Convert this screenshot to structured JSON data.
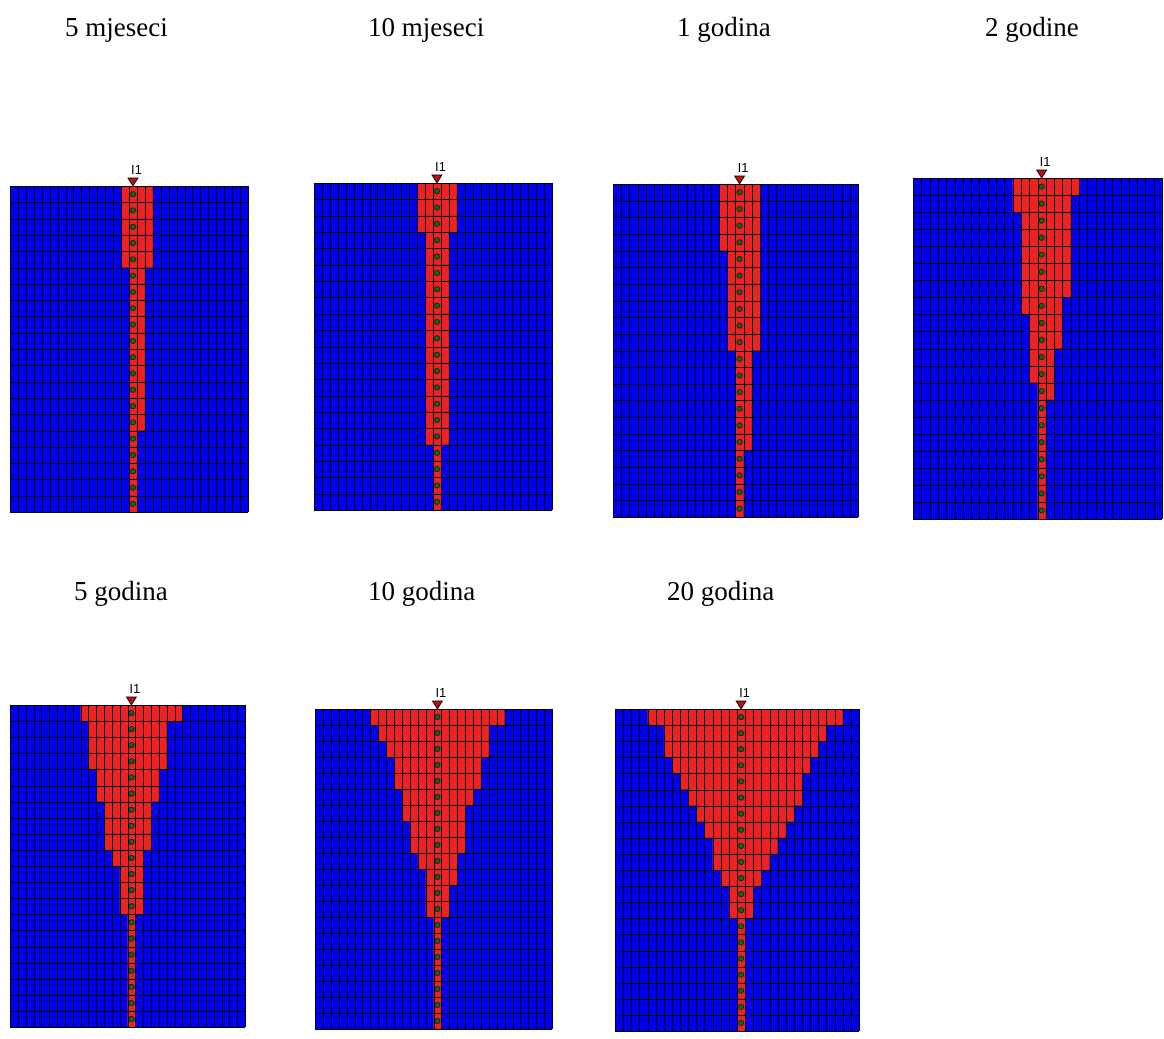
{
  "grid": {
    "columns": 30,
    "rows": 20,
    "colors": {
      "background_cell": "#0000f0",
      "plume_cell": "#ee2222",
      "grid_line": "#000000",
      "well_marker": "#bb1111",
      "well_screen_dot": "#0c6a1c"
    },
    "well_column": 15,
    "well_label": "I1"
  },
  "panels": [
    {
      "caption": "5 mjeseci",
      "plume": [
        [
          14,
          17
        ],
        [
          14,
          17
        ],
        [
          14,
          17
        ],
        [
          14,
          17
        ],
        [
          14,
          17
        ],
        [
          15,
          16
        ],
        [
          15,
          16
        ],
        [
          15,
          16
        ],
        [
          15,
          16
        ],
        [
          15,
          16
        ],
        [
          15,
          16
        ],
        [
          15,
          16
        ],
        [
          15,
          16
        ],
        [
          15,
          16
        ],
        [
          15,
          16
        ],
        [
          15,
          15
        ],
        [
          15,
          15
        ],
        [
          15,
          15
        ],
        [
          15,
          15
        ],
        [
          15,
          15
        ]
      ]
    },
    {
      "caption": "10 mjeseci",
      "plume": [
        [
          13,
          17
        ],
        [
          13,
          17
        ],
        [
          13,
          17
        ],
        [
          14,
          16
        ],
        [
          14,
          16
        ],
        [
          14,
          16
        ],
        [
          14,
          16
        ],
        [
          14,
          16
        ],
        [
          14,
          16
        ],
        [
          14,
          16
        ],
        [
          14,
          16
        ],
        [
          14,
          16
        ],
        [
          14,
          16
        ],
        [
          14,
          16
        ],
        [
          14,
          16
        ],
        [
          14,
          16
        ],
        [
          15,
          15
        ],
        [
          15,
          15
        ],
        [
          15,
          15
        ],
        [
          15,
          15
        ]
      ]
    },
    {
      "caption": "1 godina",
      "plume": [
        [
          13,
          17
        ],
        [
          13,
          17
        ],
        [
          13,
          17
        ],
        [
          13,
          17
        ],
        [
          14,
          17
        ],
        [
          14,
          17
        ],
        [
          14,
          17
        ],
        [
          14,
          17
        ],
        [
          14,
          17
        ],
        [
          14,
          17
        ],
        [
          15,
          16
        ],
        [
          15,
          16
        ],
        [
          15,
          16
        ],
        [
          15,
          16
        ],
        [
          15,
          16
        ],
        [
          15,
          16
        ],
        [
          15,
          15
        ],
        [
          15,
          15
        ],
        [
          15,
          15
        ],
        [
          15,
          15
        ]
      ]
    },
    {
      "caption": "2 godine",
      "plume": [
        [
          12,
          19
        ],
        [
          12,
          18
        ],
        [
          13,
          18
        ],
        [
          13,
          18
        ],
        [
          13,
          18
        ],
        [
          13,
          18
        ],
        [
          13,
          18
        ],
        [
          13,
          17
        ],
        [
          14,
          17
        ],
        [
          14,
          17
        ],
        [
          14,
          16
        ],
        [
          14,
          16
        ],
        [
          15,
          16
        ],
        [
          15,
          15
        ],
        [
          15,
          15
        ],
        [
          15,
          15
        ],
        [
          15,
          15
        ],
        [
          15,
          15
        ],
        [
          15,
          15
        ],
        [
          15,
          15
        ]
      ]
    },
    {
      "caption": "5 godina",
      "plume": [
        [
          9,
          21
        ],
        [
          10,
          19
        ],
        [
          10,
          19
        ],
        [
          10,
          19
        ],
        [
          11,
          18
        ],
        [
          11,
          18
        ],
        [
          12,
          17
        ],
        [
          12,
          17
        ],
        [
          12,
          17
        ],
        [
          13,
          16
        ],
        [
          14,
          16
        ],
        [
          14,
          16
        ],
        [
          14,
          16
        ],
        [
          15,
          15
        ],
        [
          15,
          15
        ],
        [
          15,
          15
        ],
        [
          15,
          15
        ],
        [
          15,
          15
        ],
        [
          15,
          15
        ],
        [
          15,
          15
        ]
      ]
    },
    {
      "caption": "10 godina",
      "plume": [
        [
          7,
          23
        ],
        [
          8,
          21
        ],
        [
          9,
          21
        ],
        [
          10,
          20
        ],
        [
          10,
          20
        ],
        [
          11,
          19
        ],
        [
          11,
          18
        ],
        [
          12,
          18
        ],
        [
          12,
          18
        ],
        [
          13,
          17
        ],
        [
          14,
          17
        ],
        [
          14,
          16
        ],
        [
          14,
          16
        ],
        [
          15,
          15
        ],
        [
          15,
          15
        ],
        [
          15,
          15
        ],
        [
          15,
          15
        ],
        [
          15,
          15
        ],
        [
          15,
          15
        ],
        [
          15,
          15
        ]
      ]
    },
    {
      "caption": "20 godina",
      "plume": [
        [
          4,
          27
        ],
        [
          6,
          25
        ],
        [
          6,
          24
        ],
        [
          7,
          23
        ],
        [
          8,
          22
        ],
        [
          9,
          22
        ],
        [
          10,
          21
        ],
        [
          11,
          20
        ],
        [
          12,
          19
        ],
        [
          12,
          18
        ],
        [
          13,
          17
        ],
        [
          14,
          16
        ],
        [
          14,
          16
        ],
        [
          15,
          15
        ],
        [
          15,
          15
        ],
        [
          15,
          15
        ],
        [
          15,
          15
        ],
        [
          15,
          15
        ],
        [
          15,
          15
        ],
        [
          15,
          15
        ]
      ]
    }
  ]
}
